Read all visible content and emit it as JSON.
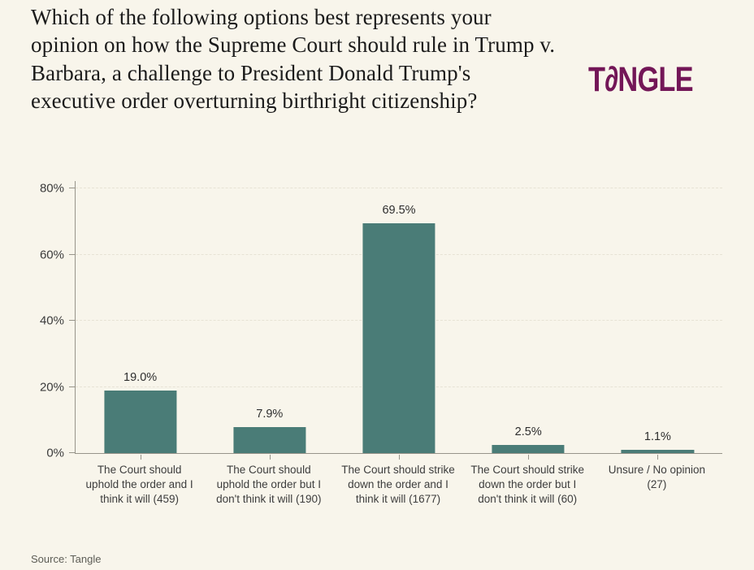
{
  "title": "Which of the following options best represents your opinion on how the Supreme Court should rule in Trump v. Barbara, a challenge to President Donald Trump's executive order overturning birthright citizenship?",
  "logo": {
    "text": "TANGLE",
    "part1": "T",
    "stylized_a_glyph": "∂",
    "part2": "NGLE",
    "color": "#731657"
  },
  "source": "Source: Tangle",
  "colors": {
    "background": "#F8F5EB",
    "bar": "#4A7C77",
    "axis": "#97948A",
    "grid": "#E7E3D5",
    "title_text": "#1B1B1B",
    "label_text": "#3D3D3D",
    "value_text": "#2E2E2E",
    "source_text": "#5C5C55",
    "logo": "#731657"
  },
  "chart_data": {
    "type": "bar",
    "title": "Which of the following options best represents your opinion on how the Supreme Court should rule in Trump v. Barbara, a challenge to President Donald Trump's executive order overturning birthright citizenship?",
    "categories": [
      "The Court should uphold the order and I think it will (459)",
      "The Court should uphold the order but I don't think it will (190)",
      "The Court should strike down the order and I think it will (1677)",
      "The Court should strike down the order but I don't think it will (60)",
      "Unsure / No opinion (27)"
    ],
    "values": [
      19.0,
      7.9,
      69.5,
      2.5,
      1.1
    ],
    "value_labels": [
      "19.0%",
      "7.9%",
      "69.5%",
      "2.5%",
      "1.1%"
    ],
    "counts": [
      459,
      190,
      1677,
      60,
      27
    ],
    "xlabel": "",
    "ylabel": "",
    "y_ticks": [
      "0%",
      "20%",
      "40%",
      "60%",
      "80%"
    ],
    "ylim": [
      0,
      80
    ],
    "grid": "horizontal-dashed",
    "legend": "none",
    "bar_color": "#4A7C77"
  }
}
